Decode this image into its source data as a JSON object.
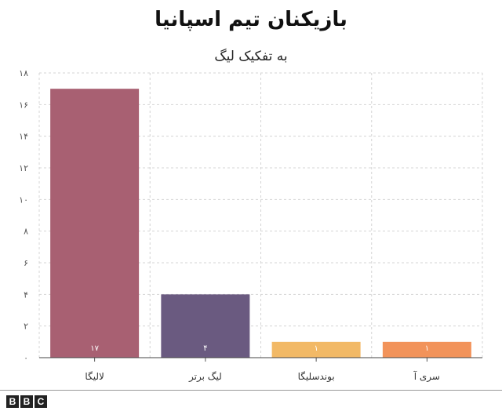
{
  "chart_data": {
    "type": "bar",
    "title": "بازیکنان تیم اسپانیا",
    "subtitle": "به تفکیک لیگ",
    "categories": [
      "لالیگا",
      "لیگ برتر",
      "بوندسلیگا",
      "سری آ"
    ],
    "values": [
      17,
      4,
      1,
      1
    ],
    "value_labels": [
      "۱۷",
      "۴",
      "۱",
      "۱"
    ],
    "colors": [
      "#a86072",
      "#6a5a80",
      "#f2b966",
      "#f2935a"
    ],
    "ylim": [
      0,
      18
    ],
    "yticks": [
      0,
      2,
      4,
      6,
      8,
      10,
      12,
      14,
      16,
      18
    ],
    "ytick_labels": [
      "۰",
      "۲",
      "۴",
      "۶",
      "۸",
      "۱۰",
      "۱۲",
      "۱۴",
      "۱۶",
      "۱۸"
    ],
    "grid": true
  },
  "footer": {
    "logo": [
      "B",
      "B",
      "C"
    ]
  }
}
